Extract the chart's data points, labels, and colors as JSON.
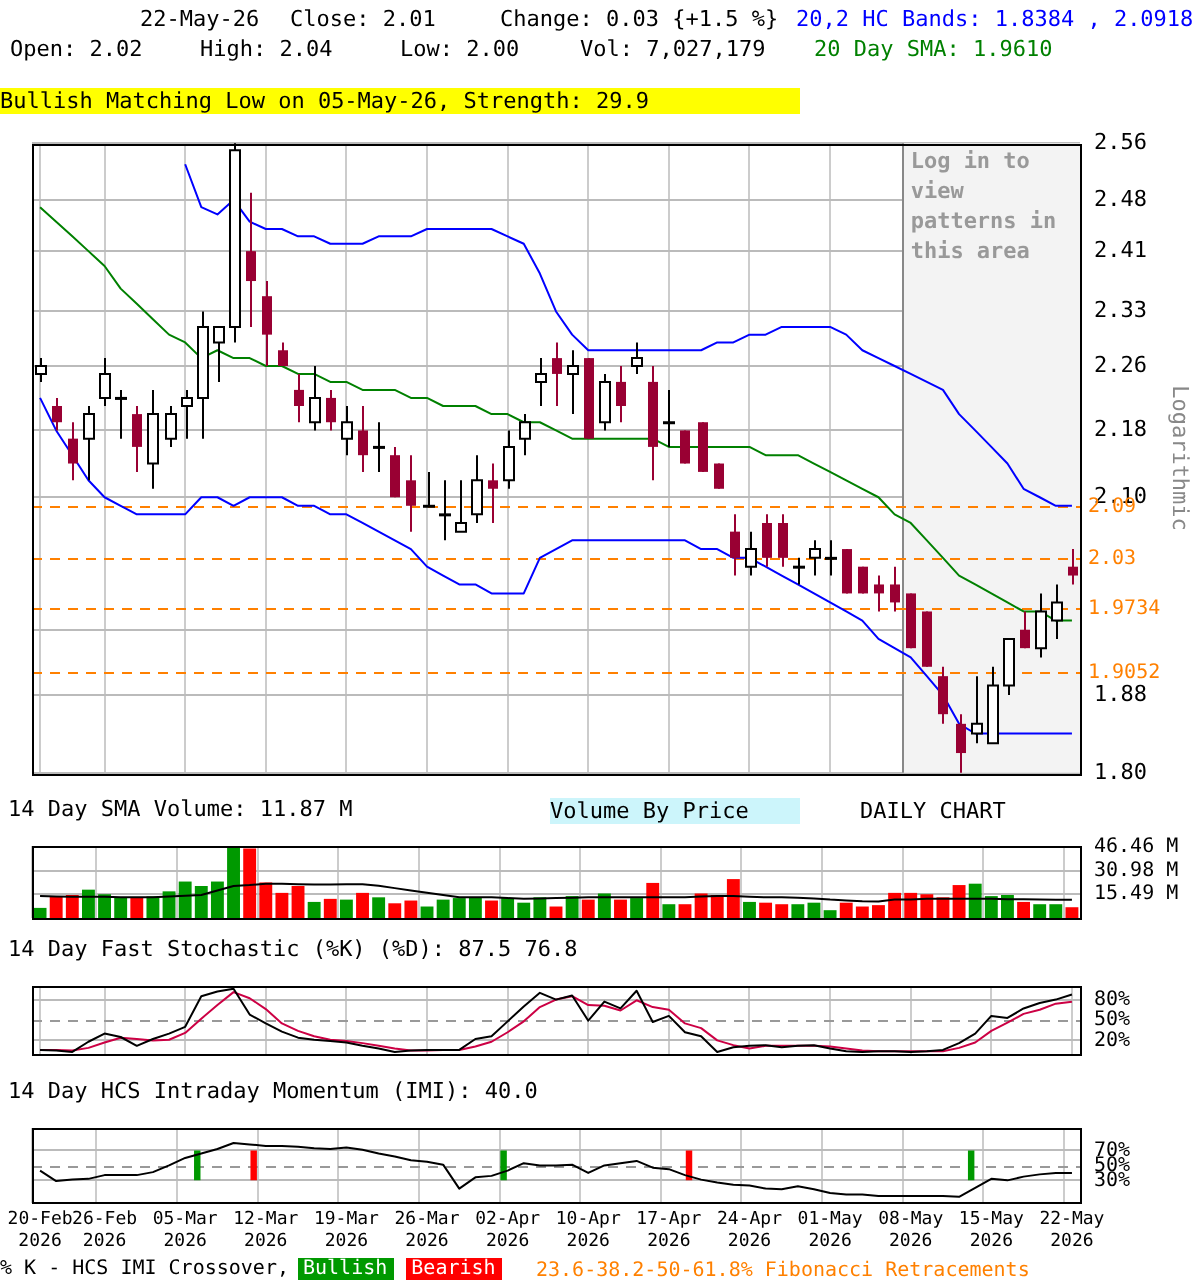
{
  "chart_data": [
    {
      "type": "candlestick",
      "categories": [
        "20-Feb 2026",
        null,
        null,
        null,
        "26-Feb 2026",
        null,
        null,
        null,
        null,
        "05-Mar 2026",
        null,
        null,
        null,
        null,
        "12-Mar 2026",
        null,
        null,
        null,
        null,
        "19-Mar 2026",
        null,
        null,
        null,
        null,
        "26-Mar 2026",
        null,
        null,
        null,
        null,
        "02-Apr 2026",
        null,
        null,
        null,
        null,
        "10-Apr 2026",
        null,
        null,
        null,
        null,
        "17-Apr 2026",
        null,
        null,
        null,
        null,
        "24-Apr 2026",
        null,
        null,
        null,
        null,
        "01-May 2026",
        null,
        null,
        null,
        null,
        "08-May 2026",
        null,
        null,
        null,
        null,
        "15-May 2026",
        null,
        null,
        null,
        null,
        "22-May 2026"
      ],
      "ohlc": [
        [
          2.25,
          2.27,
          2.24,
          2.26
        ],
        [
          2.21,
          2.22,
          2.18,
          2.19
        ],
        [
          2.17,
          2.19,
          2.12,
          2.14
        ],
        [
          2.17,
          2.21,
          2.12,
          2.2
        ],
        [
          2.22,
          2.27,
          2.21,
          2.25
        ],
        [
          2.22,
          2.23,
          2.17,
          2.22
        ],
        [
          2.2,
          2.21,
          2.13,
          2.16
        ],
        [
          2.14,
          2.23,
          2.11,
          2.2
        ],
        [
          2.17,
          2.21,
          2.16,
          2.2
        ],
        [
          2.21,
          2.23,
          2.17,
          2.22
        ],
        [
          2.22,
          2.33,
          2.17,
          2.31
        ],
        [
          2.29,
          2.31,
          2.24,
          2.31
        ],
        [
          2.31,
          2.56,
          2.29,
          2.55
        ],
        [
          2.41,
          2.49,
          2.31,
          2.37
        ],
        [
          2.35,
          2.37,
          2.26,
          2.3
        ],
        [
          2.28,
          2.29,
          2.26,
          2.26
        ],
        [
          2.23,
          2.25,
          2.19,
          2.21
        ],
        [
          2.19,
          2.26,
          2.18,
          2.22
        ],
        [
          2.22,
          2.23,
          2.18,
          2.19
        ],
        [
          2.17,
          2.21,
          2.15,
          2.19
        ],
        [
          2.18,
          2.21,
          2.13,
          2.15
        ],
        [
          2.16,
          2.19,
          2.13,
          2.16
        ],
        [
          2.15,
          2.16,
          2.1,
          2.1
        ],
        [
          2.12,
          2.15,
          2.06,
          2.09
        ],
        [
          2.09,
          2.13,
          2.09,
          2.09
        ],
        [
          2.08,
          2.12,
          2.05,
          2.08
        ],
        [
          2.06,
          2.12,
          2.06,
          2.07
        ],
        [
          2.08,
          2.15,
          2.07,
          2.12
        ],
        [
          2.12,
          2.14,
          2.07,
          2.11
        ],
        [
          2.12,
          2.18,
          2.11,
          2.16
        ],
        [
          2.17,
          2.2,
          2.15,
          2.19
        ],
        [
          2.24,
          2.27,
          2.21,
          2.25
        ],
        [
          2.27,
          2.29,
          2.21,
          2.25
        ],
        [
          2.25,
          2.28,
          2.2,
          2.26
        ],
        [
          2.27,
          2.27,
          2.17,
          2.17
        ],
        [
          2.19,
          2.25,
          2.18,
          2.24
        ],
        [
          2.24,
          2.26,
          2.19,
          2.21
        ],
        [
          2.26,
          2.29,
          2.25,
          2.27
        ],
        [
          2.24,
          2.26,
          2.12,
          2.16
        ],
        [
          2.19,
          2.23,
          2.16,
          2.19
        ],
        [
          2.18,
          2.18,
          2.14,
          2.14
        ],
        [
          2.19,
          2.19,
          2.13,
          2.13
        ],
        [
          2.14,
          2.14,
          2.11,
          2.11
        ],
        [
          2.06,
          2.08,
          2.01,
          2.03
        ],
        [
          2.02,
          2.06,
          2.01,
          2.04
        ],
        [
          2.07,
          2.08,
          2.02,
          2.03
        ],
        [
          2.07,
          2.08,
          2.02,
          2.03
        ],
        [
          2.02,
          2.03,
          2.0,
          2.02
        ],
        [
          2.03,
          2.05,
          2.01,
          2.04
        ],
        [
          2.03,
          2.05,
          2.01,
          2.03
        ],
        [
          2.04,
          2.04,
          1.99,
          1.99
        ],
        [
          2.02,
          2.02,
          1.99,
          1.99
        ],
        [
          2.0,
          2.01,
          1.97,
          1.99
        ],
        [
          2.0,
          2.02,
          1.97,
          1.98
        ],
        [
          1.99,
          1.99,
          1.93,
          1.93
        ],
        [
          1.97,
          1.97,
          1.91,
          1.91
        ],
        [
          1.9,
          1.91,
          1.85,
          1.86
        ],
        [
          1.85,
          1.86,
          1.8,
          1.82
        ],
        [
          1.84,
          1.9,
          1.83,
          1.85
        ],
        [
          1.83,
          1.91,
          1.83,
          1.89
        ],
        [
          1.89,
          1.94,
          1.88,
          1.94
        ],
        [
          1.95,
          1.97,
          1.93,
          1.93
        ],
        [
          1.93,
          1.99,
          1.92,
          1.97
        ],
        [
          1.96,
          2.0,
          1.94,
          1.98
        ],
        [
          2.02,
          2.04,
          2.0,
          2.01
        ]
      ],
      "colors": [
        "#ffffff",
        "#990033",
        "#990033",
        "#ffffff",
        "#ffffff",
        "#ffffff",
        "#990033",
        "#ffffff",
        "#ffffff",
        "#ffffff",
        "#ffffff",
        "#ffffff",
        "#ffffff",
        "#990033",
        "#990033",
        "#990033",
        "#990033",
        "#ffffff",
        "#990033",
        "#ffffff",
        "#990033",
        "#ffffff",
        "#990033",
        "#990033",
        "#ffffff",
        "#ffffff",
        "#ffffff",
        "#ffffff",
        "#990033",
        "#ffffff",
        "#ffffff",
        "#ffffff",
        "#990033",
        "#ffffff",
        "#990033",
        "#ffffff",
        "#990033",
        "#ffffff",
        "#990033",
        "#ffffff",
        "#990033",
        "#990033",
        "#990033",
        "#990033",
        "#ffffff",
        "#990033",
        "#990033",
        "#ffffff",
        "#ffffff",
        "#ffffff",
        "#990033",
        "#990033",
        "#990033",
        "#990033",
        "#990033",
        "#990033",
        "#990033",
        "#990033",
        "#ffffff",
        "#ffffff",
        "#ffffff",
        "#990033",
        "#ffffff",
        "#ffffff",
        "#990033"
      ],
      "series": [
        {
          "type": "line",
          "name": "20,2 HC Bands: 1.8384 , 2.0918",
          "color": "#0000ff",
          "values": [
            null,
            null,
            null,
            null,
            null,
            null,
            null,
            null,
            null,
            2.53,
            2.47,
            2.46,
            2.48,
            2.45,
            2.44,
            2.44,
            2.43,
            2.43,
            2.42,
            2.42,
            2.42,
            2.43,
            2.43,
            2.43,
            2.44,
            2.44,
            2.44,
            2.44,
            2.44,
            2.43,
            2.42,
            2.38,
            2.33,
            2.3,
            2.28,
            2.28,
            2.28,
            2.28,
            2.28,
            2.28,
            2.28,
            2.28,
            2.29,
            2.29,
            2.3,
            2.3,
            2.31,
            2.31,
            2.31,
            2.31,
            2.3,
            2.28,
            2.27,
            2.26,
            2.25,
            2.24,
            2.23,
            2.2,
            2.18,
            2.16,
            2.14,
            2.11,
            2.1,
            2.09,
            2.09
          ]
        },
        {
          "type": "line",
          "color": "#0000ff",
          "values": [
            2.22,
            2.18,
            2.15,
            2.12,
            2.1,
            2.09,
            2.08,
            2.08,
            2.08,
            2.08,
            2.1,
            2.1,
            2.09,
            2.1,
            2.1,
            2.1,
            2.09,
            2.09,
            2.08,
            2.08,
            2.07,
            2.06,
            2.05,
            2.04,
            2.02,
            2.01,
            2.0,
            2.0,
            1.99,
            1.99,
            1.99,
            2.03,
            2.04,
            2.05,
            2.05,
            2.05,
            2.05,
            2.05,
            2.05,
            2.05,
            2.05,
            2.04,
            2.04,
            2.03,
            2.03,
            2.02,
            2.01,
            2.0,
            1.99,
            1.98,
            1.97,
            1.96,
            1.94,
            1.93,
            1.92,
            1.9,
            1.88,
            1.85,
            1.84,
            1.84,
            1.84,
            1.84,
            1.84,
            1.84,
            1.84
          ]
        },
        {
          "type": "line",
          "name": "20 Day SMA: 1.9610",
          "color": "#008000",
          "values": [
            2.47,
            2.45,
            2.43,
            2.41,
            2.39,
            2.36,
            2.34,
            2.32,
            2.3,
            2.29,
            2.27,
            2.28,
            2.27,
            2.27,
            2.26,
            2.26,
            2.25,
            2.25,
            2.24,
            2.24,
            2.23,
            2.23,
            2.23,
            2.22,
            2.22,
            2.21,
            2.21,
            2.21,
            2.2,
            2.2,
            2.19,
            2.19,
            2.18,
            2.17,
            2.17,
            2.17,
            2.17,
            2.17,
            2.17,
            2.16,
            2.16,
            2.16,
            2.16,
            2.16,
            2.16,
            2.15,
            2.15,
            2.15,
            2.14,
            2.13,
            2.12,
            2.11,
            2.1,
            2.08,
            2.07,
            2.05,
            2.03,
            2.01,
            2.0,
            1.99,
            1.98,
            1.97,
            1.97,
            1.96,
            1.96
          ]
        }
      ],
      "ylim": [
        1.8,
        2.56
      ],
      "yticks": [
        {
          "value": 1.8,
          "label": "1.80"
        },
        1.88,
        {
          "value": 1.95,
          "label": null
        },
        {
          "value": 2.03,
          "label": null
        },
        {
          "value": 2.1,
          "label": "2.10"
        },
        2.18,
        2.26,
        2.33,
        2.41,
        2.48,
        2.56
      ],
      "ylabel": "Logarithmic",
      "log": "y",
      "grid": true,
      "tick_labels": "y",
      "ref_lines": [
        {
          "axis": "y",
          "value": 2.09,
          "label": "2.09",
          "color": "#ff8000",
          "line_style": "dashed"
        },
        {
          "axis": "y",
          "value": 2.03,
          "label": "2.03",
          "color": "#ff8000",
          "line_style": "dashed"
        },
        {
          "axis": "y",
          "value": 1.9734,
          "label": "1.9734",
          "color": "#ff8000",
          "line_style": "dashed"
        },
        {
          "axis": "y",
          "value": 1.9052,
          "label": "1.9052",
          "color": "#ff8000",
          "line_style": "dashed"
        }
      ],
      "bands": [
        {
          "axis": "x",
          "from": "08-May 2026",
          "to": "22-May 2026",
          "label": "Log in to view patterns in this area",
          "color": "#f3f3f3"
        }
      ],
      "annotations": [
        "22-May-26",
        "Close: 2.01",
        "Change: 0.03 {+1.5 %}",
        "Open: 2.02",
        "High: 2.04",
        "Low: 2.00",
        "Vol: 7,027,179",
        "Bullish Matching Low on 05-May-26, Strength: 29.9",
        "Volume By Price",
        "DAILY CHART",
        "23.6-38.2-50-61.8% Fibonacci Retracements"
      ]
    },
    {
      "type": "bar",
      "title": "14 Day SMA Volume: 11.87 M",
      "categories": [
        "20-Feb 2026",
        null,
        null,
        null,
        "26-Feb 2026",
        null,
        null,
        null,
        null,
        "05-Mar 2026",
        null,
        null,
        null,
        null,
        "12-Mar 2026",
        null,
        null,
        null,
        null,
        "19-Mar 2026",
        null,
        null,
        null,
        null,
        "26-Mar 2026",
        null,
        null,
        null,
        null,
        "02-Apr 2026",
        null,
        null,
        null,
        null,
        "10-Apr 2026",
        null,
        null,
        null,
        null,
        "17-Apr 2026",
        null,
        null,
        null,
        null,
        "24-Apr 2026",
        null,
        null,
        null,
        null,
        "01-May 2026",
        null,
        null,
        null,
        null,
        "08-May 2026",
        null,
        null,
        null,
        null,
        "15-May 2026",
        null,
        null,
        null,
        null,
        "22-May 2026"
      ],
      "series": [
        {
          "values": [
            6.6,
            14.3,
            15.0,
            18.5,
            15.5,
            13.5,
            13.5,
            14.1,
            17.4,
            23.8,
            20.9,
            23.8,
            46.46,
            45.3,
            23.2,
            16.4,
            20.9,
            10.5,
            12.5,
            12.0,
            16.4,
            13.5,
            9.6,
            11.4,
            7.5,
            12.0,
            13.0,
            13.5,
            11.4,
            13.0,
            10.0,
            13.5,
            7.5,
            14.3,
            12.0,
            16.0,
            12.0,
            13.0,
            22.9,
            9.0,
            9.0,
            16.0,
            15.0,
            25.4,
            10.5,
            10.0,
            9.0,
            9.0,
            10.0,
            5.1,
            10.0,
            7.5,
            8.4,
            16.4,
            16.4,
            15.5,
            13.5,
            21.5,
            22.4,
            14.3,
            15.0,
            10.5,
            9.0,
            9.0,
            7.03
          ],
          "colors": [
            "#009900",
            "#ff0000",
            "#ff0000",
            "#009900",
            "#009900",
            "#009900",
            "#ff0000",
            "#009900",
            "#009900",
            "#009900",
            "#009900",
            "#009900",
            "#009900",
            "#ff0000",
            "#ff0000",
            "#ff0000",
            "#ff0000",
            "#009900",
            "#ff0000",
            "#009900",
            "#ff0000",
            "#009900",
            "#ff0000",
            "#ff0000",
            "#009900",
            "#009900",
            "#009900",
            "#009900",
            "#ff0000",
            "#009900",
            "#009900",
            "#009900",
            "#ff0000",
            "#009900",
            "#ff0000",
            "#009900",
            "#ff0000",
            "#009900",
            "#ff0000",
            "#009900",
            "#ff0000",
            "#ff0000",
            "#ff0000",
            "#ff0000",
            "#009900",
            "#ff0000",
            "#ff0000",
            "#009900",
            "#009900",
            "#009900",
            "#ff0000",
            "#ff0000",
            "#ff0000",
            "#ff0000",
            "#ff0000",
            "#ff0000",
            "#ff0000",
            "#ff0000",
            "#009900",
            "#009900",
            "#009900",
            "#ff0000",
            "#009900",
            "#009900",
            "#ff0000"
          ]
        },
        {
          "type": "line",
          "color": "#000000",
          "values": [
            14.3,
            14.0,
            13.8,
            13.8,
            13.8,
            13.5,
            13.5,
            13.5,
            14.0,
            14.5,
            15.0,
            18.0,
            20.9,
            21.5,
            22.4,
            22.4,
            22.0,
            21.8,
            21.8,
            22.0,
            22.0,
            21.0,
            19.5,
            18.0,
            16.5,
            15.0,
            13.5,
            13.5,
            13.5,
            13.0,
            12.5,
            12.8,
            13.0,
            13.2,
            13.5,
            13.5,
            13.5,
            13.5,
            13.5,
            13.5,
            13.5,
            14.0,
            14.3,
            14.3,
            13.8,
            13.5,
            13.5,
            13.2,
            12.8,
            12.0,
            11.5,
            11.0,
            10.8,
            12.0,
            12.0,
            12.5,
            12.5,
            12.5,
            12.5,
            12.5,
            12.3,
            12.2,
            12.0,
            11.9,
            11.87
          ]
        }
      ],
      "ylim": [
        0,
        47
      ],
      "yticks": [
        {
          "value": 15.49,
          "label": "15.49 M"
        },
        {
          "value": 30.98,
          "label": "30.98 M"
        },
        {
          "value": 46.46,
          "label": "46.46 M"
        }
      ],
      "grid": true,
      "tick_labels": "y"
    },
    {
      "type": "line",
      "title": "14 Day Fast Stochastic (%K) (%D): 87.5  76.8",
      "categories": [
        "20-Feb 2026",
        null,
        null,
        null,
        "26-Feb 2026",
        null,
        null,
        null,
        null,
        "05-Mar 2026",
        null,
        null,
        null,
        null,
        "12-Mar 2026",
        null,
        null,
        null,
        null,
        "19-Mar 2026",
        null,
        null,
        null,
        null,
        "26-Mar 2026",
        null,
        null,
        null,
        null,
        "02-Apr 2026",
        null,
        null,
        null,
        null,
        "10-Apr 2026",
        null,
        null,
        null,
        null,
        "17-Apr 2026",
        null,
        null,
        null,
        null,
        "24-Apr 2026",
        null,
        null,
        null,
        null,
        "01-May 2026",
        null,
        null,
        null,
        null,
        "08-May 2026",
        null,
        null,
        null,
        null,
        "15-May 2026",
        null,
        null,
        null,
        null,
        "22-May 2026"
      ],
      "series": [
        {
          "color": "#000000",
          "values": [
            6,
            5,
            3,
            18,
            30,
            25,
            12,
            22,
            30,
            40,
            85,
            92,
            96,
            58,
            45,
            33,
            24,
            21,
            19,
            17,
            12,
            8,
            3,
            5,
            6,
            6,
            6,
            22,
            26,
            48,
            70,
            90,
            80,
            86,
            49,
            77,
            67,
            93,
            47,
            56,
            32,
            26,
            3,
            10,
            12,
            13,
            10,
            12,
            13,
            8,
            4,
            3,
            4,
            4,
            3,
            4,
            6,
            16,
            30,
            56,
            53,
            67,
            75,
            80,
            87.5
          ]
        },
        {
          "color": "#cc0044",
          "values": [
            6,
            6,
            5,
            9,
            17,
            24,
            22,
            20,
            21,
            31,
            52,
            72,
            91,
            82,
            66,
            45,
            34,
            26,
            21,
            19,
            16,
            12,
            8,
            5,
            5,
            6,
            6,
            11,
            18,
            32,
            48,
            69,
            80,
            85,
            72,
            71,
            64,
            79,
            69,
            65,
            45,
            38,
            20,
            13,
            8,
            12,
            12,
            12,
            12,
            11,
            8,
            5,
            4,
            4,
            4,
            4,
            4,
            9,
            17,
            34,
            46,
            59,
            65,
            74,
            76.8
          ]
        }
      ],
      "ylim": [
        0,
        100
      ],
      "yticks": [
        {
          "value": 20,
          "label": "20%"
        },
        {
          "value": 50,
          "label": "50%"
        },
        {
          "value": 80,
          "label": "80%"
        }
      ],
      "grid": true,
      "tick_labels": "y",
      "ref_lines": [
        {
          "axis": "y",
          "value": 50,
          "color": "#999999",
          "line_style": "dashed"
        }
      ]
    },
    {
      "type": "line",
      "title": "14 Day HCS Intraday Momentum (IMI): 40.0",
      "categories": [
        "20-Feb 2026",
        null,
        null,
        null,
        "26-Feb 2026",
        null,
        null,
        null,
        null,
        "05-Mar 2026",
        null,
        null,
        null,
        null,
        "12-Mar 2026",
        null,
        null,
        null,
        null,
        "19-Mar 2026",
        null,
        null,
        null,
        null,
        "26-Mar 2026",
        null,
        null,
        null,
        null,
        "02-Apr 2026",
        null,
        null,
        null,
        null,
        "10-Apr 2026",
        null,
        null,
        null,
        null,
        "17-Apr 2026",
        null,
        null,
        null,
        null,
        "24-Apr 2026",
        null,
        null,
        null,
        null,
        "01-May 2026",
        null,
        null,
        null,
        null,
        "08-May 2026",
        null,
        null,
        null,
        null,
        "15-May 2026",
        null,
        null,
        null,
        null,
        "22-May 2026"
      ],
      "series": [
        {
          "color": "#000000",
          "values": [
            43,
            29,
            31,
            32,
            37,
            37,
            37,
            41,
            50,
            60,
            66,
            72,
            80,
            78,
            76,
            76,
            75,
            73,
            72,
            74,
            71,
            66,
            62,
            57,
            55,
            51,
            19,
            34,
            36,
            43,
            53,
            50,
            50,
            51,
            40,
            50,
            53,
            56,
            47,
            45,
            37,
            31,
            27,
            24,
            23,
            19,
            18,
            22,
            18,
            13,
            11,
            11,
            9,
            9,
            9,
            9,
            9,
            8,
            20,
            32,
            30,
            35,
            38,
            40,
            40
          ]
        },
        {
          "type": "bar",
          "name": "Bullish",
          "color": "#009900",
          "values": [
            null,
            null,
            null,
            null,
            null,
            null,
            null,
            null,
            null,
            null,
            40,
            null,
            null,
            null,
            null,
            null,
            null,
            null,
            null,
            null,
            null,
            null,
            null,
            null,
            null,
            null,
            null,
            null,
            null,
            40,
            null,
            null,
            null,
            null,
            null,
            null,
            null,
            null,
            null,
            null,
            null,
            null,
            null,
            null,
            null,
            null,
            null,
            null,
            null,
            null,
            null,
            null,
            null,
            null,
            null,
            null,
            null,
            null,
            40,
            null,
            null,
            null,
            null,
            null,
            null
          ],
          "base": [
            null,
            null,
            null,
            null,
            null,
            null,
            null,
            null,
            null,
            null,
            30,
            null,
            null,
            null,
            null,
            null,
            null,
            null,
            null,
            null,
            null,
            null,
            null,
            null,
            null,
            null,
            null,
            null,
            null,
            30,
            null,
            null,
            null,
            null,
            null,
            null,
            null,
            null,
            null,
            null,
            null,
            null,
            null,
            null,
            null,
            null,
            null,
            null,
            null,
            null,
            null,
            null,
            null,
            null,
            null,
            null,
            null,
            null,
            30,
            null,
            null,
            null,
            null,
            null,
            null
          ]
        },
        {
          "type": "bar",
          "name": "Bearish",
          "color": "#ff0000",
          "values": [
            null,
            null,
            null,
            null,
            null,
            null,
            null,
            null,
            null,
            null,
            null,
            null,
            null,
            40,
            null,
            null,
            null,
            null,
            null,
            null,
            null,
            null,
            null,
            null,
            null,
            null,
            null,
            null,
            null,
            null,
            null,
            null,
            null,
            null,
            null,
            null,
            null,
            null,
            null,
            null,
            40,
            null,
            null,
            null,
            null,
            null,
            null,
            null,
            null,
            null,
            null,
            null,
            null,
            null,
            null,
            null,
            null,
            null,
            null,
            null,
            null,
            null,
            null,
            null,
            null
          ],
          "base": [
            null,
            null,
            null,
            null,
            null,
            null,
            null,
            null,
            null,
            null,
            null,
            null,
            null,
            30,
            null,
            null,
            null,
            null,
            null,
            null,
            null,
            null,
            null,
            null,
            null,
            null,
            null,
            null,
            null,
            null,
            null,
            null,
            null,
            null,
            null,
            null,
            null,
            null,
            null,
            null,
            30,
            null,
            null,
            null,
            null,
            null,
            null,
            null,
            null,
            null,
            null,
            null,
            null,
            null,
            null,
            null,
            null,
            null,
            null,
            null,
            null,
            null,
            null,
            null,
            null
          ]
        }
      ],
      "ylim": [
        0,
        100
      ],
      "yticks": [
        {
          "value": 30,
          "label": "30%"
        },
        {
          "value": 50,
          "label": "50%"
        },
        {
          "value": 70,
          "label": "70%"
        }
      ],
      "grid": true,
      "ref_lines": [
        {
          "axis": "y",
          "value": 50,
          "color": "#999999",
          "line_style": "dashed"
        }
      ],
      "legend": "bottom",
      "legend_title": "% K - HCS IMI Crossover,"
    }
  ]
}
